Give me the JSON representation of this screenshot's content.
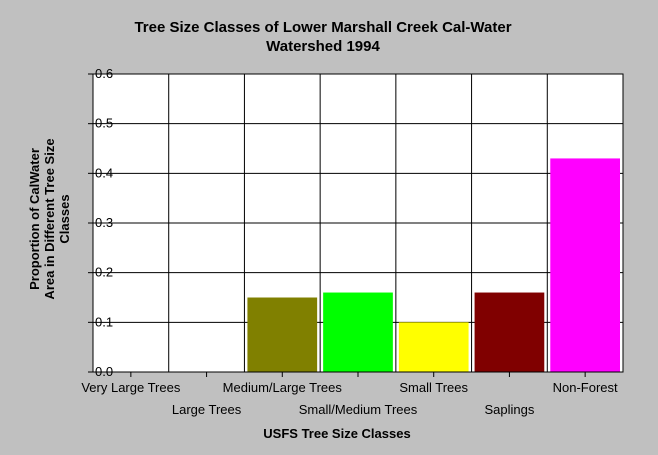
{
  "chart_data": {
    "type": "bar",
    "title_lines": [
      "Tree Size Classes of Lower Marshall Creek Cal-Water",
      "Watershed 1994"
    ],
    "xlabel": "USFS Tree Size Classes",
    "ylabel_lines": [
      "Proportion of CalWater",
      "Area in Different Tree Size",
      "Classes"
    ],
    "ylim": [
      0,
      0.6
    ],
    "yticks": [
      {
        "value": 0.0,
        "label": "0.0"
      },
      {
        "value": 0.1,
        "label": "0.1"
      },
      {
        "value": 0.2,
        "label": "0.2"
      },
      {
        "value": 0.3,
        "label": "0.3"
      },
      {
        "value": 0.4,
        "label": "0.4"
      },
      {
        "value": 0.5,
        "label": "0.5"
      },
      {
        "value": 0.6,
        "label": "0.6"
      }
    ],
    "categories": [
      "Very Large Trees",
      "Large Trees",
      "Medium/Large Trees",
      "Small/Medium Trees",
      "Small Trees",
      "Saplings",
      "Non-Forest"
    ],
    "values": [
      0,
      0,
      0.15,
      0.16,
      0.1,
      0.16,
      0.43
    ],
    "colors": [
      "#808000",
      "#808000",
      "#808000",
      "#00ff00",
      "#ffff00",
      "#800000",
      "#ff00ff"
    ],
    "grid": true,
    "plot_background": "#ffffff",
    "page_background": "#c0c0c0"
  }
}
